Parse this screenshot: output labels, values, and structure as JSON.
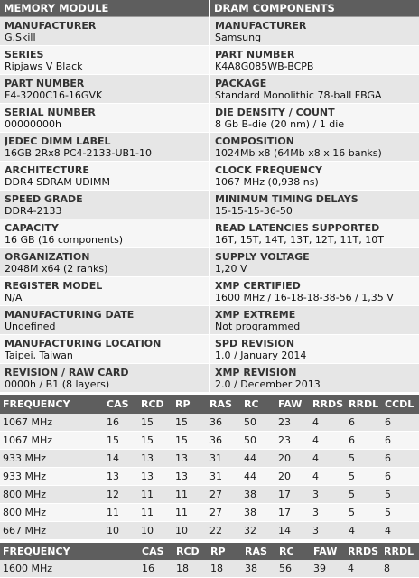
{
  "module": {
    "header": "MEMORY MODULE",
    "fields": [
      {
        "label": "MANUFACTURER",
        "value": "G.Skill"
      },
      {
        "label": "SERIES",
        "value": "Ripjaws V Black"
      },
      {
        "label": "PART NUMBER",
        "value": "F4-3200C16-16GVK"
      },
      {
        "label": "SERIAL NUMBER",
        "value": "00000000h"
      },
      {
        "label": "JEDEC DIMM LABEL",
        "value": "16GB 2Rx8 PC4-2133-UB1-10"
      },
      {
        "label": "ARCHITECTURE",
        "value": "DDR4 SDRAM UDIMM"
      },
      {
        "label": "SPEED GRADE",
        "value": "DDR4-2133"
      },
      {
        "label": "CAPACITY",
        "value": "16 GB (16 components)"
      },
      {
        "label": "ORGANIZATION",
        "value": "2048M x64 (2 ranks)"
      },
      {
        "label": "REGISTER MODEL",
        "value": "N/A"
      },
      {
        "label": "MANUFACTURING DATE",
        "value": "Undefined"
      },
      {
        "label": "MANUFACTURING LOCATION",
        "value": "Taipei, Taiwan"
      },
      {
        "label": "REVISION / RAW CARD",
        "value": "0000h / B1 (8 layers)"
      }
    ]
  },
  "dram": {
    "header": "DRAM COMPONENTS",
    "fields": [
      {
        "label": "MANUFACTURER",
        "value": "Samsung"
      },
      {
        "label": "PART NUMBER",
        "value": "K4A8G085WB-BCPB"
      },
      {
        "label": "PACKAGE",
        "value": "Standard Monolithic 78-ball FBGA"
      },
      {
        "label": "DIE DENSITY / COUNT",
        "value": "8 Gb B-die (20 nm) / 1 die"
      },
      {
        "label": "COMPOSITION",
        "value": "1024Mb x8 (64Mb x8 x 16 banks)"
      },
      {
        "label": "CLOCK FREQUENCY",
        "value": "1067 MHz (0,938 ns)"
      },
      {
        "label": "MINIMUM TIMING DELAYS",
        "value": "15-15-15-36-50"
      },
      {
        "label": "READ LATENCIES SUPPORTED",
        "value": "16T, 15T, 14T, 13T, 12T, 11T, 10T"
      },
      {
        "label": "SUPPLY VOLTAGE",
        "value": "1,20 V"
      },
      {
        "label": "XMP CERTIFIED",
        "value": "1600 MHz / 16-18-18-38-56 / 1,35 V"
      },
      {
        "label": "XMP EXTREME",
        "value": "Not programmed"
      },
      {
        "label": "SPD REVISION",
        "value": "1.0 / January 2014"
      },
      {
        "label": "XMP REVISION",
        "value": "2.0 / December 2013"
      }
    ]
  },
  "jedec_timings": {
    "headers": [
      "FREQUENCY",
      "CAS",
      "RCD",
      "RP",
      "RAS",
      "RC",
      "FAW",
      "RRDS",
      "RRDL",
      "CCDL"
    ],
    "rows": [
      [
        "1067 MHz",
        "16",
        "15",
        "15",
        "36",
        "50",
        "23",
        "4",
        "6",
        "6"
      ],
      [
        "1067 MHz",
        "15",
        "15",
        "15",
        "36",
        "50",
        "23",
        "4",
        "6",
        "6"
      ],
      [
        "933 MHz",
        "14",
        "13",
        "13",
        "31",
        "44",
        "20",
        "4",
        "5",
        "6"
      ],
      [
        "933 MHz",
        "13",
        "13",
        "13",
        "31",
        "44",
        "20",
        "4",
        "5",
        "6"
      ],
      [
        "800 MHz",
        "12",
        "11",
        "11",
        "27",
        "38",
        "17",
        "3",
        "5",
        "5"
      ],
      [
        "800 MHz",
        "11",
        "11",
        "11",
        "27",
        "38",
        "17",
        "3",
        "5",
        "5"
      ],
      [
        "667 MHz",
        "10",
        "10",
        "10",
        "22",
        "32",
        "14",
        "3",
        "4",
        "4"
      ]
    ]
  },
  "xmp_timings": {
    "headers": [
      "FREQUENCY",
      "CAS",
      "RCD",
      "RP",
      "RAS",
      "RC",
      "FAW",
      "RRDS",
      "RRDL"
    ],
    "rows": [
      [
        "1600 MHz",
        "16",
        "18",
        "18",
        "38",
        "56",
        "39",
        "4",
        "8"
      ]
    ]
  }
}
